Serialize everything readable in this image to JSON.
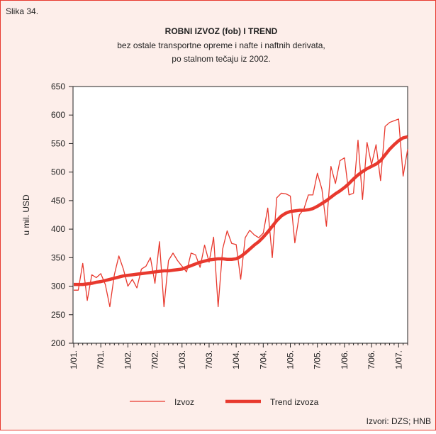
{
  "chart_data": {
    "type": "line",
    "figure_label": "Slika 34.",
    "title": "ROBNI IZVOZ (fob) I TREND",
    "subtitle": "bez ostale transportne opreme i nafte i naftnih derivata,",
    "subtitle2": "po stalnom tečaju iz 2002.",
    "ylabel": "u mil. USD",
    "source": "Izvori: DZS; HNB",
    "categories": [
      "1/01.",
      null,
      null,
      null,
      null,
      null,
      "7/01.",
      null,
      null,
      null,
      null,
      null,
      "1/02.",
      null,
      null,
      null,
      null,
      null,
      "7/02.",
      null,
      null,
      null,
      null,
      null,
      "1/03.",
      null,
      null,
      null,
      null,
      null,
      "7/03.",
      null,
      null,
      null,
      null,
      null,
      "1/04.",
      null,
      null,
      null,
      null,
      null,
      "7/04.",
      null,
      null,
      null,
      null,
      null,
      "1/05.",
      null,
      null,
      null,
      null,
      null,
      "7/05.",
      null,
      null,
      null,
      null,
      null,
      "1/06.",
      null,
      null,
      null,
      null,
      null,
      "7/06.",
      null,
      null,
      null,
      null,
      null,
      "1/07.",
      null,
      null
    ],
    "series": [
      {
        "name": "Izvoz",
        "color": "#e8392e",
        "width": 1.3,
        "values": [
          293,
          293,
          340,
          275,
          320,
          315,
          322,
          303,
          264,
          320,
          353,
          330,
          300,
          312,
          297,
          330,
          335,
          350,
          305,
          378,
          264,
          345,
          358,
          345,
          335,
          325,
          358,
          355,
          333,
          372,
          342,
          386,
          264,
          365,
          397,
          375,
          373,
          312,
          385,
          398,
          390,
          385,
          393,
          437,
          350,
          455,
          463,
          462,
          458,
          376,
          425,
          435,
          460,
          460,
          498,
          470,
          405,
          510,
          480,
          520,
          525,
          460,
          463,
          556,
          452,
          552,
          513,
          548,
          485,
          580,
          587,
          590,
          593,
          493,
          540
        ]
      },
      {
        "name": "Trend izvoza",
        "color": "#e8392e",
        "width": 4.5,
        "values": [
          303,
          303,
          303,
          304,
          305,
          307,
          308,
          310,
          312,
          314,
          316,
          318,
          319,
          320,
          321,
          322,
          323,
          324,
          325,
          326,
          327,
          327,
          328,
          329,
          330,
          333,
          336,
          339,
          342,
          344,
          346,
          347,
          348,
          348,
          347,
          347,
          348,
          352,
          358,
          365,
          372,
          378,
          386,
          395,
          405,
          415,
          423,
          428,
          431,
          432,
          433,
          433,
          434,
          436,
          440,
          445,
          450,
          456,
          462,
          467,
          473,
          480,
          488,
          495,
          501,
          506,
          510,
          514,
          520,
          530,
          540,
          548,
          555,
          560,
          562
        ]
      }
    ],
    "ylim": [
      200,
      650
    ],
    "yticks": [
      200,
      250,
      300,
      350,
      400,
      450,
      500,
      550,
      600,
      650
    ],
    "grid": false
  }
}
